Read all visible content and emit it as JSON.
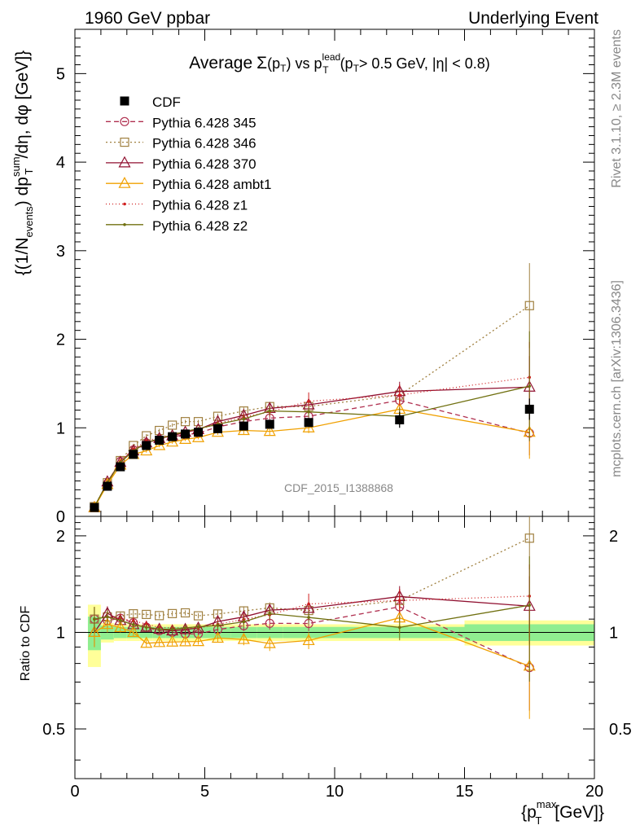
{
  "header": {
    "left": "1960 GeV ppbar",
    "right": "Underlying Event"
  },
  "side_labels": {
    "rivet": "Rivet 3.1.10, ≥ 2.3M events",
    "mcplots": "mcplots.cern.ch [arXiv:1306.3436]"
  },
  "watermark": "CDF_2015_I1388868",
  "chart_data": {
    "type": "scatter",
    "title": {
      "prefix": "Average",
      "sigma": "Σ",
      "pt_open": "(p",
      "pt_sub": "T",
      "pt_close": ")",
      "vs": "vs",
      "p": "p",
      "p_sub": "T",
      "p_sup": "lead",
      "cut_open": "(p",
      "cut_sub": "T",
      "cut_rest": "> 0.5 GeV, |η| < 0.8)"
    },
    "ylabel": {
      "open": "{(1/N",
      "sub1": "events",
      "mid": ") dp",
      "sub2": "T",
      "sup2": "sum",
      "tail": "/dη, dφ [GeV]}"
    },
    "ratio_ylabel": "Ratio to CDF",
    "xlabel": {
      "open": "{p",
      "sub": "T",
      "sup": "max",
      "tail": "[GeV]}"
    },
    "xlim": [
      0,
      20
    ],
    "ylim": [
      0,
      5.5
    ],
    "ratio_ylim": [
      0.35,
      2.3
    ],
    "x_ticks": [
      0,
      5,
      10,
      15,
      20
    ],
    "x_tick_labels": [
      "0",
      "5",
      "10",
      "15",
      "20"
    ],
    "y_ticks": [
      0,
      1,
      2,
      3,
      4,
      5
    ],
    "y_tick_labels": [
      "0",
      "1",
      "2",
      "3",
      "4",
      "5"
    ],
    "ratio_ticks": [
      0.5,
      1,
      2
    ],
    "ratio_tick_labels": [
      "0.5",
      "1",
      "2"
    ],
    "legend_position": "top-left",
    "x": [
      0.75,
      1.25,
      1.75,
      2.25,
      2.75,
      3.25,
      3.75,
      4.25,
      4.75,
      5.5,
      6.5,
      7.5,
      9.0,
      12.5,
      17.5
    ],
    "data": {
      "name": "CDF",
      "color": "#000000",
      "values": [
        0.1,
        0.34,
        0.56,
        0.7,
        0.8,
        0.86,
        0.9,
        0.93,
        0.95,
        0.99,
        1.02,
        1.04,
        1.06,
        1.09,
        1.21
      ],
      "errors": [
        0.01,
        0.02,
        0.02,
        0.02,
        0.02,
        0.02,
        0.02,
        0.02,
        0.02,
        0.03,
        0.03,
        0.04,
        0.05,
        0.09,
        0.12
      ],
      "stat_band": [
        0.12,
        0.05,
        0.04,
        0.04,
        0.04,
        0.04,
        0.04,
        0.04,
        0.04,
        0.04,
        0.04,
        0.04,
        0.04,
        0.04,
        0.06
      ],
      "total_band": [
        0.22,
        0.07,
        0.06,
        0.06,
        0.06,
        0.06,
        0.06,
        0.06,
        0.06,
        0.06,
        0.06,
        0.06,
        0.06,
        0.06,
        0.09
      ],
      "bin_edges": [
        0.5,
        1.0,
        1.5,
        2.0,
        2.5,
        3.0,
        3.5,
        4.0,
        4.5,
        5.0,
        6.0,
        7.0,
        8.0,
        10.0,
        15.0,
        20.0
      ]
    },
    "series": [
      {
        "name": "Pythia 6.428 345",
        "color": "#b03050",
        "dash": "6,4",
        "marker": "circle",
        "values": [
          0.11,
          0.37,
          0.62,
          0.75,
          0.83,
          0.87,
          0.9,
          0.92,
          0.94,
          1.01,
          1.07,
          1.11,
          1.13,
          1.31,
          0.94
        ],
        "errors": [
          0.01,
          0.02,
          0.02,
          0.02,
          0.02,
          0.02,
          0.02,
          0.02,
          0.02,
          0.03,
          0.04,
          0.05,
          0.06,
          0.12,
          0.25
        ]
      },
      {
        "name": "Pythia 6.428 346",
        "color": "#a08040",
        "dash": "2,3",
        "marker": "square",
        "values": [
          0.11,
          0.38,
          0.63,
          0.8,
          0.91,
          0.97,
          1.03,
          1.07,
          1.07,
          1.13,
          1.19,
          1.24,
          1.24,
          1.37,
          2.38
        ],
        "errors": [
          0.01,
          0.02,
          0.02,
          0.02,
          0.02,
          0.02,
          0.02,
          0.02,
          0.02,
          0.03,
          0.04,
          0.05,
          0.06,
          0.12,
          0.48
        ]
      },
      {
        "name": "Pythia 6.428 370",
        "color": "#901030",
        "dash": "",
        "marker": "triangle",
        "values": [
          0.1,
          0.39,
          0.61,
          0.74,
          0.83,
          0.88,
          0.91,
          0.95,
          0.98,
          1.07,
          1.14,
          1.22,
          1.26,
          1.41,
          1.46
        ],
        "errors": [
          0.01,
          0.02,
          0.02,
          0.02,
          0.02,
          0.02,
          0.02,
          0.02,
          0.02,
          0.03,
          0.04,
          0.05,
          0.06,
          0.11,
          0.35
        ]
      },
      {
        "name": "Pythia 6.428 ambt1",
        "color": "#f0a000",
        "dash": "",
        "marker": "triangle",
        "values": [
          0.1,
          0.36,
          0.58,
          0.7,
          0.74,
          0.8,
          0.84,
          0.87,
          0.89,
          0.95,
          0.97,
          0.96,
          1.0,
          1.21,
          0.95
        ],
        "errors": [
          0.01,
          0.02,
          0.02,
          0.02,
          0.02,
          0.02,
          0.02,
          0.02,
          0.02,
          0.03,
          0.04,
          0.05,
          0.06,
          0.12,
          0.3
        ]
      },
      {
        "name": "Pythia 6.428 z1",
        "color": "#d02020",
        "dash": "1,3",
        "marker": "dot",
        "values": [
          0.11,
          0.38,
          0.62,
          0.76,
          0.85,
          0.89,
          0.93,
          0.96,
          0.98,
          1.05,
          1.12,
          1.18,
          1.3,
          1.37,
          1.57
        ],
        "errors": [
          0.01,
          0.02,
          0.02,
          0.02,
          0.02,
          0.02,
          0.02,
          0.02,
          0.02,
          0.03,
          0.04,
          0.05,
          0.1,
          0.12,
          0.4
        ]
      },
      {
        "name": "Pythia 6.428 z2",
        "color": "#707010",
        "dash": "",
        "marker": "dot",
        "values": [
          0.11,
          0.38,
          0.61,
          0.74,
          0.83,
          0.88,
          0.92,
          0.96,
          0.99,
          1.04,
          1.1,
          1.19,
          1.18,
          1.13,
          1.47
        ],
        "errors": [
          0.01,
          0.02,
          0.02,
          0.02,
          0.02,
          0.02,
          0.02,
          0.02,
          0.02,
          0.03,
          0.04,
          0.05,
          0.06,
          0.1,
          0.62
        ]
      }
    ]
  }
}
